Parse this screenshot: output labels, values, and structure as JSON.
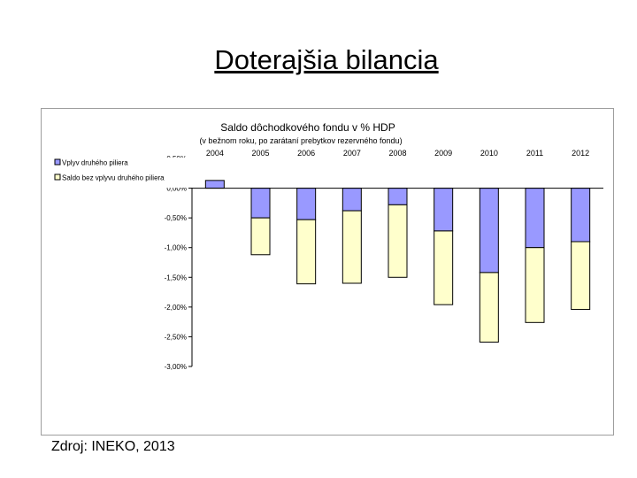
{
  "slide": {
    "title": "Doterajšia bilancia",
    "source": "Zdroj: INEKO, 2013"
  },
  "chart_data": {
    "type": "bar",
    "stacked": true,
    "title": "Saldo dôchodkového fondu v % HDP",
    "subtitle": "(v bežnom roku, po zarátaní prebytkov rezervného fondu)",
    "categories": [
      "2004",
      "2005",
      "2006",
      "2007",
      "2008",
      "2009",
      "2010",
      "2011",
      "2012"
    ],
    "series": [
      {
        "name": "Vplyv druhého piliera",
        "color": "#9999ff",
        "values": [
          0,
          -0.5,
          -0.53,
          -0.38,
          -0.28,
          -0.72,
          -1.42,
          -1.0,
          -0.9
        ]
      },
      {
        "name": "Saldo bez vplyvu druhého piliera",
        "color": "#ffffcc",
        "values": [
          0.13,
          -0.62,
          -1.08,
          -1.22,
          -1.22,
          -1.24,
          -1.17,
          -1.26,
          -1.14
        ]
      }
    ],
    "ylim": [
      -3.0,
      0.5
    ],
    "yticks": [
      "0,50%",
      "0,00%",
      "-0,50%",
      "-1,00%",
      "-1,50%",
      "-2,00%",
      "-2,50%",
      "-3,00%"
    ],
    "ytick_values": [
      0.5,
      0.0,
      -0.5,
      -1.0,
      -1.5,
      -2.0,
      -2.5,
      -3.0
    ],
    "xaxis_position": "top",
    "legend_position": "top-left",
    "grid": false
  }
}
